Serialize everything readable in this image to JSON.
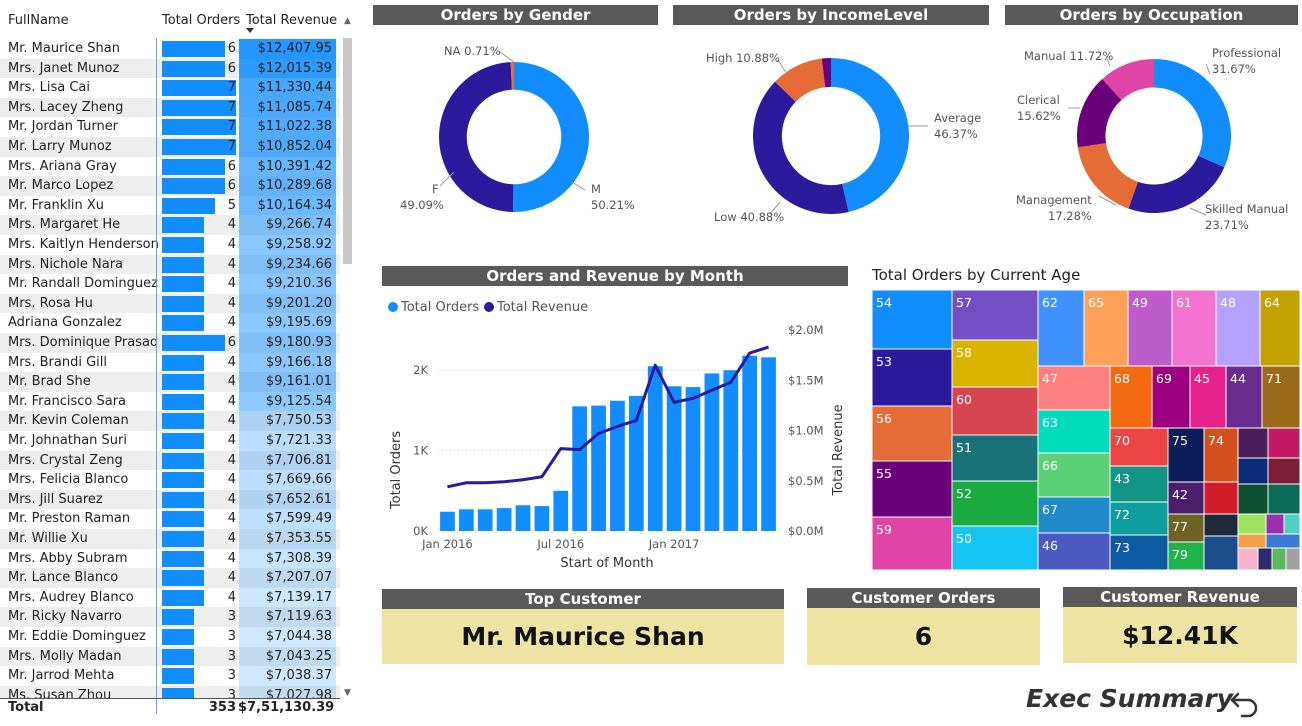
{
  "table": {
    "headers": {
      "name": "FullName",
      "orders": "Total Orders",
      "revenue": "Total Revenue"
    },
    "rows": [
      {
        "name": "Mr. Maurice Shan",
        "orders": 6,
        "revenue": "$12,407.95"
      },
      {
        "name": "Mrs. Janet Munoz",
        "orders": 6,
        "revenue": "$12,015.39"
      },
      {
        "name": "Mrs. Lisa Cai",
        "orders": 7,
        "revenue": "$11,330.44"
      },
      {
        "name": "Mrs. Lacey Zheng",
        "orders": 7,
        "revenue": "$11,085.74"
      },
      {
        "name": "Mr. Jordan Turner",
        "orders": 7,
        "revenue": "$11,022.38"
      },
      {
        "name": "Mr. Larry Munoz",
        "orders": 7,
        "revenue": "$10,852.04"
      },
      {
        "name": "Mrs. Ariana Gray",
        "orders": 6,
        "revenue": "$10,391.42"
      },
      {
        "name": "Mr. Marco Lopez",
        "orders": 6,
        "revenue": "$10,289.68"
      },
      {
        "name": "Mr. Franklin Xu",
        "orders": 5,
        "revenue": "$10,164.34"
      },
      {
        "name": "Mrs. Margaret He",
        "orders": 4,
        "revenue": "$9,266.74"
      },
      {
        "name": "Mrs. Kaitlyn Henderson",
        "orders": 4,
        "revenue": "$9,258.92"
      },
      {
        "name": "Mrs. Nichole Nara",
        "orders": 4,
        "revenue": "$9,234.66"
      },
      {
        "name": "Mr. Randall Dominguez",
        "orders": 4,
        "revenue": "$9,210.36"
      },
      {
        "name": "Mrs. Rosa Hu",
        "orders": 4,
        "revenue": "$9,201.20"
      },
      {
        "name": "Adriana Gonzalez",
        "orders": 4,
        "revenue": "$9,195.69"
      },
      {
        "name": "Mrs. Dominique Prasad",
        "orders": 6,
        "revenue": "$9,180.93"
      },
      {
        "name": "Mrs. Brandi Gill",
        "orders": 4,
        "revenue": "$9,166.18"
      },
      {
        "name": "Mr. Brad She",
        "orders": 4,
        "revenue": "$9,161.01"
      },
      {
        "name": "Mr. Francisco Sara",
        "orders": 4,
        "revenue": "$9,125.54"
      },
      {
        "name": "Mr. Kevin Coleman",
        "orders": 4,
        "revenue": "$7,750.53"
      },
      {
        "name": "Mr. Johnathan Suri",
        "orders": 4,
        "revenue": "$7,721.33"
      },
      {
        "name": "Mrs. Crystal Zeng",
        "orders": 4,
        "revenue": "$7,706.81"
      },
      {
        "name": "Mrs. Felicia Blanco",
        "orders": 4,
        "revenue": "$7,669.66"
      },
      {
        "name": "Mrs. Jill Suarez",
        "orders": 4,
        "revenue": "$7,652.61"
      },
      {
        "name": "Mr. Preston Raman",
        "orders": 4,
        "revenue": "$7,599.49"
      },
      {
        "name": "Mr. Willie Xu",
        "orders": 4,
        "revenue": "$7,353.55"
      },
      {
        "name": "Mrs. Abby Subram",
        "orders": 4,
        "revenue": "$7,308.39"
      },
      {
        "name": "Mr. Lance Blanco",
        "orders": 4,
        "revenue": "$7,207.07"
      },
      {
        "name": "Mrs. Audrey Blanco",
        "orders": 4,
        "revenue": "$7,139.17"
      },
      {
        "name": "Mr. Ricky Navarro",
        "orders": 3,
        "revenue": "$7,119.63"
      },
      {
        "name": "Mr. Eddie Dominguez",
        "orders": 3,
        "revenue": "$7,044.38"
      },
      {
        "name": "Mrs. Molly Madan",
        "orders": 3,
        "revenue": "$7,043.25"
      },
      {
        "name": "Mr. Jarrod Mehta",
        "orders": 3,
        "revenue": "$7,038.37"
      },
      {
        "name": "Ms. Susan Zhou",
        "orders": 3,
        "revenue": "$7,027.98"
      }
    ],
    "total": {
      "label": "Total",
      "orders": "353",
      "revenue": "$7,51,130.39"
    }
  },
  "visuals": {
    "gender_title": "Orders by Gender",
    "income_title": "Orders by IncomeLevel",
    "occupation_title": "Orders by Occupation",
    "combo_title": "Orders and Revenue by Month",
    "treemap_title": "Total Orders by Current Age"
  },
  "chart_data": [
    {
      "type": "pie",
      "title": "Orders by Gender",
      "slices": [
        {
          "label": "M",
          "pct": "50.21%",
          "value": 50.21,
          "color": "#118DFF"
        },
        {
          "label": "F",
          "pct": "49.09%",
          "value": 49.09,
          "color": "#2B1A9C"
        },
        {
          "label": "NA",
          "pct": "0.71%",
          "value": 0.71,
          "color": "#E66C37"
        }
      ]
    },
    {
      "type": "pie",
      "title": "Orders by IncomeLevel",
      "slices": [
        {
          "label": "Average",
          "pct": "46.37%",
          "value": 46.37,
          "color": "#118DFF"
        },
        {
          "label": "Low",
          "pct": "40.88%",
          "value": 40.88,
          "color": "#2B1A9C"
        },
        {
          "label": "High",
          "pct": "10.88%",
          "value": 10.88,
          "color": "#E66C37"
        },
        {
          "label": "",
          "pct": "",
          "value": 1.87,
          "color": "#6B007B"
        }
      ]
    },
    {
      "type": "pie",
      "title": "Orders by Occupation",
      "slices": [
        {
          "label": "Professional",
          "pct": "31.67%",
          "value": 31.67,
          "color": "#118DFF"
        },
        {
          "label": "Skilled Manual",
          "pct": "23.71%",
          "value": 23.71,
          "color": "#2B1A9C"
        },
        {
          "label": "Management",
          "pct": "17.28%",
          "value": 17.28,
          "color": "#E66C37"
        },
        {
          "label": "Clerical",
          "pct": "15.62%",
          "value": 15.62,
          "color": "#6B007B"
        },
        {
          "label": "Manual",
          "pct": "11.72%",
          "value": 11.72,
          "color": "#E044A7"
        }
      ]
    },
    {
      "type": "bar",
      "title": "Orders and Revenue by Month",
      "xlabel": "Start of Month",
      "ylabel": "Total Orders",
      "y2label": "Total Revenue",
      "legend": [
        "Total  Orders",
        "Total Revenue"
      ],
      "x_ticks": [
        "Jan 2016",
        "Jul 2016",
        "Jan 2017"
      ],
      "y_ticks": [
        "0K",
        "1K",
        "2K"
      ],
      "y2_ticks": [
        "$0.0M",
        "$0.5M",
        "$1.0M",
        "$1.5M",
        "$2.0M"
      ],
      "ylim": [
        0,
        2500
      ],
      "y2lim": [
        0,
        2000000
      ],
      "series": [
        {
          "name": "Total  Orders",
          "type": "bar",
          "color": "#118DFF",
          "values": [
            240,
            270,
            270,
            285,
            320,
            310,
            500,
            1550,
            1560,
            1620,
            1680,
            2050,
            1800,
            1790,
            1960,
            2000,
            2180,
            2160
          ]
        },
        {
          "name": "Total Revenue",
          "type": "line",
          "color": "#2B1A9C",
          "values": [
            440000,
            480000,
            480000,
            490000,
            510000,
            540000,
            820000,
            810000,
            970000,
            1040000,
            1100000,
            1650000,
            1280000,
            1320000,
            1400000,
            1480000,
            1770000,
            1830000
          ]
        }
      ]
    },
    {
      "type": "heatmap",
      "title": "Total Orders by Current Age",
      "cells": [
        {
          "label": "54",
          "color": "#118DFF"
        },
        {
          "label": "53",
          "color": "#2B1A9C"
        },
        {
          "label": "56",
          "color": "#E66C37"
        },
        {
          "label": "55",
          "color": "#6B007B"
        },
        {
          "label": "59",
          "color": "#E044A7"
        },
        {
          "label": "57",
          "color": "#744EC2"
        },
        {
          "label": "58",
          "color": "#D9B300"
        },
        {
          "label": "60",
          "color": "#D64550"
        },
        {
          "label": "51",
          "color": "#197278"
        },
        {
          "label": "52",
          "color": "#1AAB40"
        },
        {
          "label": "50",
          "color": "#15C6F4"
        },
        {
          "label": "62",
          "color": "#4092FF"
        },
        {
          "label": "65",
          "color": "#FFA058"
        },
        {
          "label": "49",
          "color": "#BE5DC9"
        },
        {
          "label": "61",
          "color": "#F472D0"
        },
        {
          "label": "48",
          "color": "#B5A1FF"
        },
        {
          "label": "64",
          "color": "#C4A200"
        },
        {
          "label": "47",
          "color": "#FF8080"
        },
        {
          "label": "63",
          "color": "#00DBBC"
        },
        {
          "label": "66",
          "color": "#5BD078"
        },
        {
          "label": "67",
          "color": "#1F8BC9"
        },
        {
          "label": "46",
          "color": "#4B5AC0"
        },
        {
          "label": "68",
          "color": "#F46A11"
        },
        {
          "label": "69",
          "color": "#9C007E"
        },
        {
          "label": "45",
          "color": "#E6208D"
        },
        {
          "label": "44",
          "color": "#6A2C8E"
        },
        {
          "label": "71",
          "color": "#9B6A1B"
        },
        {
          "label": "70",
          "color": "#EF4444"
        },
        {
          "label": "43",
          "color": "#149485"
        },
        {
          "label": "72",
          "color": "#0E9E9E"
        },
        {
          "label": "73",
          "color": "#0C5AA0"
        },
        {
          "label": "75",
          "color": "#0D1D59"
        },
        {
          "label": "74",
          "color": "#D35020"
        },
        {
          "label": "42",
          "color": "#4C1D6B"
        },
        {
          "label": "77",
          "color": "#6E6325"
        },
        {
          "label": "79",
          "color": "#21B24C"
        }
      ]
    }
  ],
  "cards": {
    "top_customer_title": "Top Customer",
    "top_customer_value": "Mr. Maurice Shan",
    "orders_title": "Customer Orders",
    "orders_value": "6",
    "revenue_title": "Customer Revenue",
    "revenue_value": "$12.41K"
  },
  "footer": {
    "exec_summary": "Exec Summary",
    "back_icon": "back-arrow-icon"
  }
}
